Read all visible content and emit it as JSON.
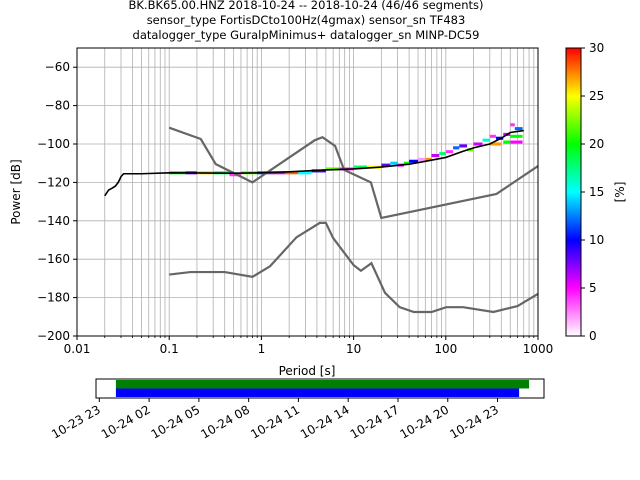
{
  "title_lines": [
    "BK.BK65.00.HNZ   2018-10-24 -- 2018-10-24  (46/46 segments)",
    "sensor_type FortisDCto100Hz(4gmax) sensor_sn TF483",
    "datalogger_type GuralpMinimus+ datalogger_sn MINP-DC59"
  ],
  "chart_data": [
    {
      "type": "heatmap",
      "xlabel": "Period [s]",
      "ylabel": "Power [dB]",
      "xscale": "log",
      "xlim": [
        0.01,
        1000
      ],
      "ylim": [
        -200,
        -50
      ],
      "x_ticks": [
        {
          "value": 0.01,
          "label": "0.01"
        },
        {
          "value": 0.1,
          "label": "0.1"
        },
        {
          "value": 1,
          "label": "1"
        },
        {
          "value": 10,
          "label": "10"
        },
        {
          "value": 100,
          "label": "100"
        },
        {
          "value": 1000,
          "label": "1000"
        }
      ],
      "y_ticks": [
        {
          "value": -60,
          "label": "−60"
        },
        {
          "value": -80,
          "label": "−80"
        },
        {
          "value": -100,
          "label": "−100"
        },
        {
          "value": -120,
          "label": "−120"
        },
        {
          "value": -140,
          "label": "−140"
        },
        {
          "value": -160,
          "label": "−160"
        },
        {
          "value": -180,
          "label": "−180"
        },
        {
          "value": -200,
          "label": "−200"
        }
      ],
      "grid": true,
      "colorbar": {
        "label": "[%]",
        "range": [
          0,
          30
        ],
        "ticks": [
          {
            "value": 0,
            "label": "0"
          },
          {
            "value": 5,
            "label": "5"
          },
          {
            "value": 10,
            "label": "10"
          },
          {
            "value": 15,
            "label": "15"
          },
          {
            "value": 20,
            "label": "20"
          },
          {
            "value": 25,
            "label": "25"
          },
          {
            "value": 30,
            "label": "30"
          }
        ],
        "colors": [
          "#ffffff",
          "#ff00ff",
          "#0000ff",
          "#00ffff",
          "#00ff00",
          "#ffff00",
          "#ff0000"
        ]
      },
      "noise_model_color": "#666666",
      "nhnm": [
        [
          0.1,
          -91.5
        ],
        [
          0.22,
          -97.4
        ],
        [
          0.32,
          -110.5
        ],
        [
          0.8,
          -120
        ],
        [
          3.8,
          -98
        ],
        [
          4.6,
          -96.5
        ],
        [
          6.3,
          -101
        ],
        [
          7.9,
          -113.5
        ],
        [
          15.4,
          -120
        ],
        [
          20,
          -138.5
        ],
        [
          354.8,
          -126
        ],
        [
          1000,
          -111.5
        ]
      ],
      "nlnm": [
        [
          0.1,
          -168
        ],
        [
          0.17,
          -166.7
        ],
        [
          0.4,
          -166.7
        ],
        [
          0.8,
          -169.2
        ],
        [
          1.24,
          -163.7
        ],
        [
          2.4,
          -148.6
        ],
        [
          4.3,
          -141.1
        ],
        [
          5,
          -141.1
        ],
        [
          6,
          -149
        ],
        [
          10,
          -163.1
        ],
        [
          12,
          -166
        ],
        [
          15.6,
          -162.1
        ],
        [
          21.9,
          -177.5
        ],
        [
          31.6,
          -185
        ],
        [
          45,
          -187.5
        ],
        [
          70,
          -187.5
        ],
        [
          101,
          -185
        ],
        [
          154,
          -185
        ],
        [
          328,
          -187.5
        ],
        [
          600,
          -184.4
        ],
        [
          1000,
          -178
        ]
      ],
      "mean_psd": [
        [
          0.02,
          -127
        ],
        [
          0.022,
          -124
        ],
        [
          0.024,
          -123
        ],
        [
          0.026,
          -122
        ],
        [
          0.028,
          -120
        ],
        [
          0.03,
          -117
        ],
        [
          0.032,
          -115.5
        ],
        [
          0.05,
          -115.5
        ],
        [
          0.1,
          -115
        ],
        [
          0.5,
          -115.2
        ],
        [
          1,
          -115
        ],
        [
          2,
          -114.5
        ],
        [
          5,
          -113.5
        ],
        [
          10,
          -113
        ],
        [
          20,
          -112
        ],
        [
          40,
          -110.5
        ],
        [
          60,
          -109
        ],
        [
          100,
          -107
        ],
        [
          150,
          -104
        ],
        [
          200,
          -102
        ],
        [
          300,
          -100
        ],
        [
          400,
          -97
        ],
        [
          500,
          -94
        ],
        [
          700,
          -93
        ]
      ],
      "psd_bins": [
        {
          "p0": 0.1,
          "p1": 0.15,
          "db": -115,
          "pct": 20
        },
        {
          "p0": 0.15,
          "p1": 0.2,
          "db": -115,
          "pct": 8
        },
        {
          "p0": 0.2,
          "p1": 0.3,
          "db": -115,
          "pct": 26
        },
        {
          "p0": 0.3,
          "p1": 0.45,
          "db": -115,
          "pct": 18
        },
        {
          "p0": 0.45,
          "p1": 0.6,
          "db": -116,
          "pct": 4
        },
        {
          "p0": 0.6,
          "p1": 0.9,
          "db": -115,
          "pct": 22
        },
        {
          "p0": 0.9,
          "p1": 1.2,
          "db": -115,
          "pct": 12
        },
        {
          "p0": 1.2,
          "p1": 1.8,
          "db": -115,
          "pct": 6
        },
        {
          "p0": 1.8,
          "p1": 2.5,
          "db": -115,
          "pct": 28
        },
        {
          "p0": 2.5,
          "p1": 3.5,
          "db": -115,
          "pct": 15
        },
        {
          "p0": 3.5,
          "p1": 5,
          "db": -114,
          "pct": 9
        },
        {
          "p0": 5,
          "p1": 7,
          "db": -113,
          "pct": 22
        },
        {
          "p0": 7,
          "p1": 10,
          "db": -113,
          "pct": 4
        },
        {
          "p0": 10,
          "p1": 14,
          "db": -112,
          "pct": 18
        },
        {
          "p0": 14,
          "p1": 20,
          "db": -112,
          "pct": 25
        },
        {
          "p0": 20,
          "p1": 25,
          "db": -111,
          "pct": 8
        },
        {
          "p0": 25,
          "p1": 30,
          "db": -110,
          "pct": 14
        },
        {
          "p0": 30,
          "p1": 35,
          "db": -111,
          "pct": 5
        },
        {
          "p0": 35,
          "p1": 40,
          "db": -110,
          "pct": 20
        },
        {
          "p0": 40,
          "p1": 50,
          "db": -109,
          "pct": 10
        },
        {
          "p0": 50,
          "p1": 60,
          "db": -108,
          "pct": 2
        },
        {
          "p0": 60,
          "p1": 70,
          "db": -108,
          "pct": 27
        },
        {
          "p0": 70,
          "p1": 85,
          "db": -106,
          "pct": 6
        },
        {
          "p0": 85,
          "p1": 100,
          "db": -105,
          "pct": 18
        },
        {
          "p0": 100,
          "p1": 120,
          "db": -104,
          "pct": 4
        },
        {
          "p0": 120,
          "p1": 140,
          "db": -102,
          "pct": 12
        },
        {
          "p0": 140,
          "p1": 170,
          "db": -101,
          "pct": 8
        },
        {
          "p0": 170,
          "p1": 200,
          "db": -103,
          "pct": 22
        },
        {
          "p0": 200,
          "p1": 250,
          "db": -100,
          "pct": 6
        },
        {
          "p0": 250,
          "p1": 300,
          "db": -98,
          "pct": 16
        },
        {
          "p0": 300,
          "p1": 350,
          "db": -96,
          "pct": 4
        },
        {
          "p0": 350,
          "p1": 420,
          "db": -97,
          "pct": 10
        },
        {
          "p0": 420,
          "p1": 500,
          "db": -95,
          "pct": 6
        },
        {
          "p0": 500,
          "p1": 560,
          "db": -90,
          "pct": 4
        },
        {
          "p0": 560,
          "p1": 680,
          "db": -92,
          "pct": 12
        },
        {
          "p0": 500,
          "p1": 680,
          "db": -96,
          "pct": 20
        },
        {
          "p0": 500,
          "p1": 680,
          "db": -99,
          "pct": 5
        },
        {
          "p0": 420,
          "p1": 500,
          "db": -99,
          "pct": 20
        },
        {
          "p0": 300,
          "p1": 400,
          "db": -100,
          "pct": 27
        }
      ]
    },
    {
      "type": "timeline",
      "tick_labels": [
        "10-23 23",
        "10-24 02",
        "10-24 05",
        "10-24 08",
        "10-24 11",
        "10-24 14",
        "10-24 17",
        "10-24 20",
        "10-24 23"
      ],
      "tick_hours": [
        -1,
        2,
        5,
        8,
        11,
        14,
        17,
        20,
        23
      ],
      "xlim_hours": [
        -1.2,
        25.8
      ],
      "bars": [
        {
          "color": "#008000",
          "start_hour": 0,
          "end_hour": 24.9
        },
        {
          "color": "#0000ff",
          "start_hour": 0,
          "end_hour": 24.3
        }
      ]
    }
  ]
}
